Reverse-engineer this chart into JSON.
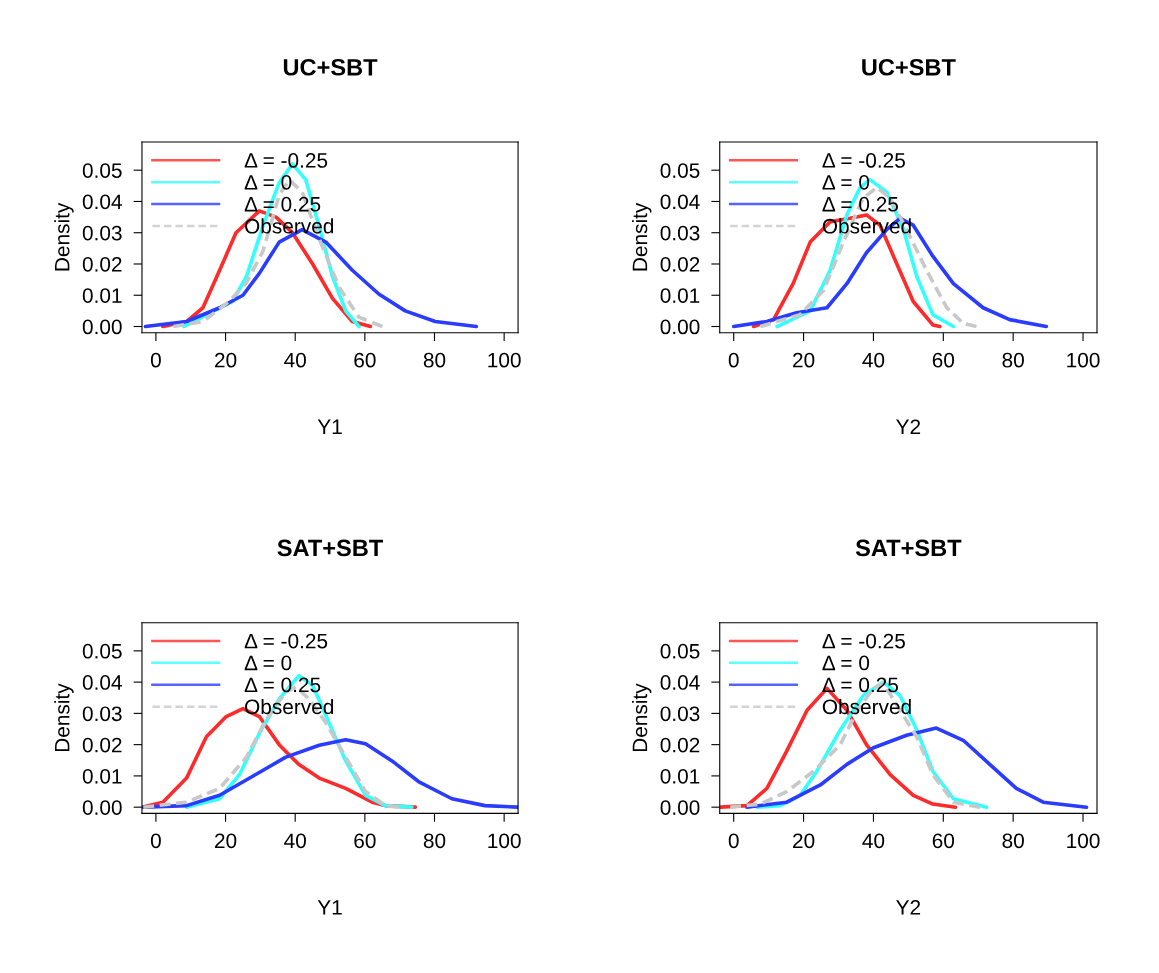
{
  "chart_data": [
    {
      "type": "line",
      "title": "UC+SBT",
      "xlabel": "Y1",
      "ylabel": "Density",
      "xlim": [
        -4,
        104
      ],
      "ylim": [
        -0.002,
        0.059
      ],
      "xticks": [
        0,
        20,
        40,
        60,
        80,
        100
      ],
      "yticks": [
        {
          "value": 0,
          "label": "0.00"
        },
        {
          "value": 0.01,
          "label": "0.01"
        },
        {
          "value": 0.02,
          "label": "0.02"
        },
        {
          "value": 0.03,
          "label": "0.03"
        },
        {
          "value": 0.04,
          "label": "0.04"
        },
        {
          "value": 0.05,
          "label": "0.05"
        }
      ],
      "legend": "top left",
      "grid": false,
      "series": [
        {
          "name": "Δ = -0.25",
          "color": "#ff2a2a",
          "line_style": "solid",
          "x": [
            2,
            8.8,
            13.5,
            18.3,
            23,
            29.7,
            34.5,
            39.2,
            45,
            50.7,
            56.4,
            61.6
          ],
          "values": [
            0,
            0.0016,
            0.006,
            0.018,
            0.03,
            0.037,
            0.035,
            0.03,
            0.02,
            0.009,
            0.0016,
            0
          ]
        },
        {
          "name": "Δ = 0",
          "color": "#33ffff",
          "line_style": "solid",
          "x": [
            8,
            22,
            26,
            30.7,
            35.4,
            39.2,
            43,
            46.9,
            50.7,
            54.5,
            58.3
          ],
          "values": [
            0,
            0.008,
            0.016,
            0.032,
            0.046,
            0.052,
            0.047,
            0.032,
            0.016,
            0.005,
            0
          ]
        },
        {
          "name": "Δ = 0.25",
          "color": "#2a3cff",
          "line_style": "solid",
          "x": [
            -3,
            8.8,
            18.3,
            25,
            29.7,
            35.4,
            42,
            48.8,
            56.4,
            64,
            71.6,
            80.2,
            92
          ],
          "values": [
            0,
            0.0016,
            0.006,
            0.01,
            0.017,
            0.027,
            0.031,
            0.027,
            0.018,
            0.0104,
            0.005,
            0.0016,
            0
          ]
        },
        {
          "name": "Observed",
          "color": "#c8c8c8",
          "line_style": "dashed",
          "x": [
            5,
            13.5,
            21,
            26,
            30.7,
            35.4,
            38.3,
            42,
            46.9,
            52.6,
            58.3,
            65
          ],
          "values": [
            0,
            0.0016,
            0.008,
            0.014,
            0.024,
            0.042,
            0.047,
            0.043,
            0.028,
            0.0126,
            0.003,
            0
          ]
        }
      ]
    },
    {
      "type": "line",
      "title": "UC+SBT",
      "xlabel": "Y2",
      "ylabel": "Density",
      "xlim": [
        -4,
        104
      ],
      "ylim": [
        -0.002,
        0.059
      ],
      "xticks": [
        0,
        20,
        40,
        60,
        80,
        100
      ],
      "yticks": [
        {
          "value": 0,
          "label": "0.00"
        },
        {
          "value": 0.01,
          "label": "0.01"
        },
        {
          "value": 0.02,
          "label": "0.02"
        },
        {
          "value": 0.03,
          "label": "0.03"
        },
        {
          "value": 0.04,
          "label": "0.04"
        },
        {
          "value": 0.05,
          "label": "0.05"
        }
      ],
      "legend": "top left",
      "grid": false,
      "series": [
        {
          "name": "Δ = -0.25",
          "color": "#ff2a2a",
          "line_style": "solid",
          "x": [
            5.7,
            11.4,
            17,
            21.9,
            27.6,
            33.3,
            38,
            41.9,
            46.7,
            51.4,
            57,
            59
          ],
          "values": [
            0,
            0.0022,
            0.0137,
            0.027,
            0.0335,
            0.0346,
            0.0357,
            0.0324,
            0.02,
            0.008,
            0.0005,
            0
          ]
        },
        {
          "name": "Δ = 0",
          "color": "#33ffff",
          "line_style": "solid",
          "x": [
            12.4,
            21.9,
            27.6,
            32.4,
            36.2,
            39,
            43.8,
            48.6,
            52.4,
            57,
            62.9
          ],
          "values": [
            0,
            0.005,
            0.018,
            0.0357,
            0.0445,
            0.047,
            0.043,
            0.031,
            0.016,
            0.0038,
            0
          ]
        },
        {
          "name": "Δ = 0.25",
          "color": "#2a3cff",
          "line_style": "solid",
          "x": [
            0,
            9.5,
            18,
            26.7,
            32.4,
            38,
            43.8,
            47.6,
            51.4,
            57,
            62.9,
            71.4,
            79,
            89.5
          ],
          "values": [
            0,
            0.0016,
            0.0044,
            0.006,
            0.0137,
            0.0236,
            0.031,
            0.0346,
            0.0324,
            0.0225,
            0.0137,
            0.006,
            0.0022,
            0
          ]
        },
        {
          "name": "Observed",
          "color": "#c8c8c8",
          "line_style": "dashed",
          "x": [
            7.6,
            19,
            25.7,
            31.4,
            37,
            41,
            44.8,
            49.5,
            55.2,
            61,
            65.7,
            69.5
          ],
          "values": [
            0,
            0.0038,
            0.0115,
            0.027,
            0.041,
            0.0445,
            0.041,
            0.031,
            0.018,
            0.006,
            0.001,
            0
          ]
        }
      ]
    },
    {
      "type": "line",
      "title": "SAT+SBT",
      "xlabel": "Y1",
      "ylabel": "Density",
      "xlim": [
        -4,
        104
      ],
      "ylim": [
        -0.002,
        0.059
      ],
      "xticks": [
        0,
        20,
        40,
        60,
        80,
        100
      ],
      "yticks": [
        {
          "value": 0,
          "label": "0.00"
        },
        {
          "value": 0.01,
          "label": "0.01"
        },
        {
          "value": 0.02,
          "label": "0.02"
        },
        {
          "value": 0.03,
          "label": "0.03"
        },
        {
          "value": 0.04,
          "label": "0.04"
        },
        {
          "value": 0.05,
          "label": "0.05"
        }
      ],
      "legend": "top left",
      "grid": false,
      "series": [
        {
          "name": "Δ = -0.25",
          "color": "#ff2a2a",
          "line_style": "solid",
          "x": [
            -4,
            2,
            8.8,
            14.5,
            20.2,
            25,
            29.7,
            35.4,
            41,
            46.9,
            54.5,
            62.1,
            65.9,
            74.5
          ],
          "values": [
            0,
            0.0016,
            0.0093,
            0.0225,
            0.029,
            0.0315,
            0.029,
            0.02,
            0.0137,
            0.0093,
            0.006,
            0.0016,
            0.0005,
            0
          ]
        },
        {
          "name": "Δ = 0",
          "color": "#33ffff",
          "line_style": "solid",
          "x": [
            8.8,
            18.3,
            24,
            29.7,
            35.4,
            41,
            45,
            49.7,
            54.5,
            60.2,
            65.9,
            73.5
          ],
          "values": [
            0,
            0.0027,
            0.0104,
            0.0236,
            0.0346,
            0.042,
            0.039,
            0.027,
            0.0148,
            0.0038,
            0.0005,
            0
          ]
        },
        {
          "name": "Δ = 0.25",
          "color": "#2a3cff",
          "line_style": "solid",
          "x": [
            -3.6,
            8.8,
            18.3,
            27.8,
            37.3,
            46.9,
            54.5,
            60.2,
            67.8,
            75.4,
            85,
            94.5,
            104
          ],
          "values": [
            0,
            0.0005,
            0.0038,
            0.0099,
            0.016,
            0.0198,
            0.0216,
            0.0203,
            0.0148,
            0.0082,
            0.0027,
            0.0005,
            0
          ]
        },
        {
          "name": "Observed",
          "color": "#c8c8c8",
          "line_style": "dashed",
          "x": [
            -3.6,
            8.8,
            18.3,
            26,
            31.6,
            37.3,
            40.2,
            44,
            48.8,
            54.5,
            60.2,
            65.9,
            69.7
          ],
          "values": [
            0,
            0.0016,
            0.006,
            0.016,
            0.028,
            0.0368,
            0.0385,
            0.0346,
            0.027,
            0.016,
            0.005,
            0.0005,
            0
          ]
        }
      ]
    },
    {
      "type": "line",
      "title": "SAT+SBT",
      "xlabel": "Y2",
      "ylabel": "Density",
      "xlim": [
        -4,
        104
      ],
      "ylim": [
        -0.002,
        0.059
      ],
      "xticks": [
        0,
        20,
        40,
        60,
        80,
        100
      ],
      "yticks": [
        {
          "value": 0,
          "label": "0.00"
        },
        {
          "value": 0.01,
          "label": "0.01"
        },
        {
          "value": 0.02,
          "label": "0.02"
        },
        {
          "value": 0.03,
          "label": "0.03"
        },
        {
          "value": 0.04,
          "label": "0.04"
        },
        {
          "value": 0.05,
          "label": "0.05"
        }
      ],
      "legend": "top left",
      "grid": false,
      "series": [
        {
          "name": "Δ = -0.25",
          "color": "#ff2a2a",
          "line_style": "solid",
          "x": [
            -3.8,
            3.8,
            9.5,
            15.2,
            21,
            26.7,
            32.4,
            38,
            44.8,
            51.4,
            57,
            63.5
          ],
          "values": [
            0,
            0.0005,
            0.006,
            0.018,
            0.031,
            0.038,
            0.031,
            0.02,
            0.0104,
            0.0038,
            0.001,
            0
          ]
        },
        {
          "name": "Δ = 0",
          "color": "#33ffff",
          "line_style": "solid",
          "x": [
            6.7,
            13.3,
            19,
            23.8,
            30.5,
            37.1,
            42.9,
            47.6,
            52.4,
            57,
            62.9,
            72.4
          ],
          "values": [
            0,
            0.0005,
            0.0038,
            0.0115,
            0.0247,
            0.0357,
            0.04,
            0.0357,
            0.0247,
            0.0115,
            0.0027,
            0
          ]
        },
        {
          "name": "Δ = 0.25",
          "color": "#2a3cff",
          "line_style": "solid",
          "x": [
            3.8,
            15.2,
            24.8,
            32.4,
            40,
            49.5,
            58,
            65.7,
            73.3,
            80.9,
            88.6,
            101
          ],
          "values": [
            0,
            0.0016,
            0.0071,
            0.0137,
            0.019,
            0.023,
            0.0253,
            0.0214,
            0.0137,
            0.006,
            0.0016,
            0
          ]
        },
        {
          "name": "Observed",
          "color": "#c8c8c8",
          "line_style": "dashed",
          "x": [
            -1,
            7.6,
            15.2,
            22.9,
            30.5,
            35.4,
            40,
            42.9,
            47.6,
            52.4,
            57,
            62.9,
            70.5
          ],
          "values": [
            0,
            0.001,
            0.005,
            0.0115,
            0.02,
            0.031,
            0.038,
            0.0396,
            0.031,
            0.0225,
            0.0104,
            0.0016,
            0
          ]
        }
      ]
    }
  ]
}
